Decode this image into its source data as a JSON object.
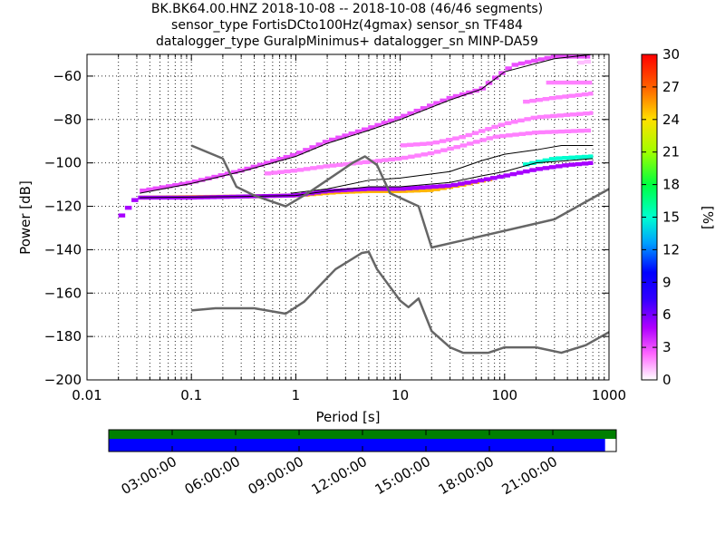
{
  "title_lines": [
    "BK.BK64.00.HNZ   2018-10-08 -- 2018-10-08  (46/46 segments)",
    "sensor_type FortisDCto100Hz(4gmax) sensor_sn TF484",
    "datalogger_type GuralpMinimus+ datalogger_sn MINP-DA59"
  ],
  "chart_data": {
    "type": "heatmap",
    "xlabel": "Period [s]",
    "ylabel": "Power [dB]",
    "x_scale": "log",
    "xlim": [
      0.01,
      1000
    ],
    "ylim": [
      -200,
      -50
    ],
    "x_ticks": [
      0.01,
      0.1,
      1,
      10,
      100,
      1000
    ],
    "x_tick_labels": [
      "0.01",
      "0.1",
      "1",
      "10",
      "100",
      "1000"
    ],
    "y_ticks": [
      -200,
      -180,
      -160,
      -140,
      -120,
      -100,
      -80,
      -60
    ],
    "y_tick_labels": [
      "−200",
      "−180",
      "−160",
      "−140",
      "−120",
      "−100",
      "−80",
      "−60"
    ],
    "grid": true,
    "colorbar": {
      "label": "[%]",
      "range": [
        0,
        30
      ],
      "ticks": [
        0,
        3,
        6,
        9,
        12,
        15,
        18,
        21,
        24,
        27,
        30
      ],
      "tick_labels": [
        "0",
        "3",
        "6",
        "9",
        "12",
        "15",
        "18",
        "21",
        "24",
        "27",
        "30"
      ]
    },
    "noise_models": [
      {
        "points": [
          [
            0.1,
            -92
          ],
          [
            0.2,
            -98
          ],
          [
            0.27,
            -111
          ],
          [
            0.4,
            -115
          ],
          [
            0.8,
            -120
          ],
          [
            1.3,
            -114
          ],
          [
            3.5,
            -100
          ],
          [
            4.6,
            -97
          ],
          [
            6,
            -101
          ],
          [
            8,
            -114
          ],
          [
            15,
            -120
          ],
          [
            20,
            -139
          ],
          [
            300,
            -126
          ],
          [
            1000,
            -112
          ]
        ]
      },
      {
        "points": [
          [
            0.1,
            -168
          ],
          [
            0.17,
            -167
          ],
          [
            0.4,
            -167
          ],
          [
            0.8,
            -169.5
          ],
          [
            1.2,
            -164
          ],
          [
            2.4,
            -149
          ],
          [
            4.3,
            -141.5
          ],
          [
            5,
            -141
          ],
          [
            6,
            -149
          ],
          [
            10,
            -163.5
          ],
          [
            12,
            -166.5
          ],
          [
            15,
            -162.5
          ],
          [
            20,
            -177.5
          ],
          [
            30,
            -185
          ],
          [
            40,
            -187.5
          ],
          [
            70,
            -187.5
          ],
          [
            100,
            -185
          ],
          [
            200,
            -185
          ],
          [
            350,
            -187.5
          ],
          [
            600,
            -184
          ],
          [
            1000,
            -178
          ]
        ]
      }
    ],
    "ppsd_bands": [
      {
        "name": "",
        "level": 25,
        "points": [
          [
            0.032,
            -116
          ],
          [
            0.3,
            -115.5
          ],
          [
            1,
            -115
          ],
          [
            2.5,
            -113.5
          ],
          [
            5,
            -113
          ],
          [
            10,
            -113
          ],
          [
            20,
            -112.5
          ],
          [
            40,
            -110
          ],
          [
            80,
            -107
          ]
        ]
      },
      {
        "name": "",
        "level": 15,
        "points": [
          [
            150,
            -101
          ],
          [
            300,
            -98
          ],
          [
            700,
            -97
          ]
        ]
      },
      {
        "name": "",
        "level": 5,
        "points": [
          [
            0.02,
            -126
          ],
          [
            0.03,
            -116
          ],
          [
            0.1,
            -116
          ],
          [
            0.3,
            -115.5
          ],
          [
            1,
            -115
          ],
          [
            2,
            -113
          ],
          [
            5,
            -112
          ],
          [
            10,
            -112
          ],
          [
            30,
            -110.5
          ],
          [
            60,
            -108
          ],
          [
            100,
            -106
          ],
          [
            200,
            -103
          ],
          [
            400,
            -101
          ],
          [
            700,
            -100
          ]
        ]
      },
      {
        "name": "",
        "level": 3,
        "points": [
          [
            0.032,
            -113
          ],
          [
            0.1,
            -109
          ],
          [
            0.3,
            -103.5
          ],
          [
            1,
            -96
          ],
          [
            2,
            -90
          ],
          [
            5,
            -84
          ],
          [
            10,
            -79
          ],
          [
            30,
            -70
          ],
          [
            60,
            -66
          ],
          [
            80,
            -61
          ],
          [
            120,
            -55
          ],
          [
            300,
            -51
          ],
          [
            700,
            -51
          ]
        ]
      },
      {
        "name": "",
        "level": 2,
        "points": [
          [
            0.5,
            -105
          ],
          [
            1,
            -103.5
          ],
          [
            2,
            -101.5
          ],
          [
            5,
            -99.5
          ],
          [
            10,
            -98
          ],
          [
            20,
            -95.5
          ],
          [
            40,
            -92
          ],
          [
            80,
            -88
          ],
          [
            200,
            -86
          ],
          [
            700,
            -85
          ]
        ]
      },
      {
        "name": "",
        "level": 2,
        "points": [
          [
            10,
            -92
          ],
          [
            20,
            -91
          ],
          [
            40,
            -88
          ],
          [
            100,
            -82
          ],
          [
            200,
            -79
          ],
          [
            700,
            -77
          ]
        ]
      },
      {
        "name": "",
        "level": 2,
        "points": [
          [
            150,
            -72
          ],
          [
            300,
            -70
          ],
          [
            700,
            -68
          ]
        ]
      },
      {
        "name": "",
        "level": 2,
        "points": [
          [
            250,
            -63
          ],
          [
            700,
            -63
          ]
        ]
      },
      {
        "name": "",
        "level": 1,
        "points": [
          [
            500,
            -54
          ],
          [
            700,
            -53
          ]
        ]
      }
    ],
    "percentile_lines": [
      {
        "points": [
          [
            0.032,
            -116
          ],
          [
            0.3,
            -115.5
          ],
          [
            1,
            -115
          ],
          [
            2,
            -113
          ],
          [
            5,
            -111
          ],
          [
            10,
            -111
          ],
          [
            30,
            -109
          ],
          [
            60,
            -106
          ],
          [
            100,
            -104
          ],
          [
            200,
            -100
          ],
          [
            400,
            -99
          ],
          [
            700,
            -98
          ]
        ]
      },
      {
        "points": [
          [
            0.9,
            -114
          ],
          [
            2,
            -112
          ],
          [
            5,
            -108
          ],
          [
            10,
            -107
          ],
          [
            30,
            -104
          ],
          [
            60,
            -99
          ],
          [
            100,
            -96
          ],
          [
            200,
            -94
          ],
          [
            350,
            -92
          ],
          [
            700,
            -92
          ]
        ]
      },
      {
        "points": [
          [
            0.032,
            -114
          ],
          [
            0.1,
            -109.5
          ],
          [
            0.3,
            -104
          ],
          [
            1,
            -97
          ],
          [
            2,
            -91
          ],
          [
            5,
            -85
          ],
          [
            10,
            -80
          ],
          [
            30,
            -71
          ],
          [
            60,
            -66
          ],
          [
            100,
            -58
          ],
          [
            300,
            -52
          ],
          [
            700,
            -50
          ]
        ]
      }
    ]
  },
  "timeline": {
    "tick_labels": [
      "03:00:00",
      "06:00:00",
      "09:00:00",
      "12:00:00",
      "15:00:00",
      "18:00:00",
      "21:00:00"
    ],
    "coverage_fraction": 0.978,
    "top_color": "#007f00",
    "bottom_color": "#0000ff"
  }
}
